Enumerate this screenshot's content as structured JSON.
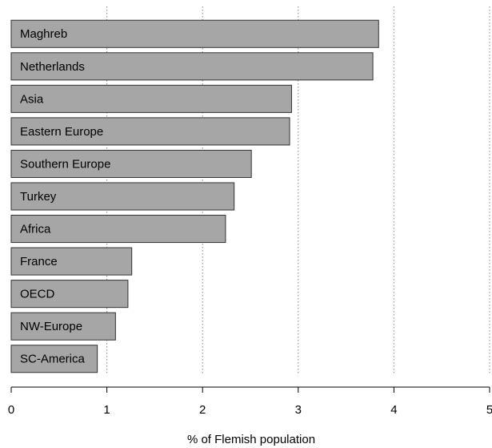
{
  "chart_data": {
    "type": "hbar",
    "xlabel": "% of Flemish population",
    "categories": [
      "Maghreb",
      "Netherlands",
      "Asia",
      "Eastern Europe",
      "Southern Europe",
      "Turkey",
      "Africa",
      "France",
      "OECD",
      "NW-Europe",
      "SC-America"
    ],
    "values": [
      3.84,
      3.78,
      2.93,
      2.91,
      2.51,
      2.33,
      2.24,
      1.26,
      1.22,
      1.09,
      0.9
    ],
    "color": "#a6a6a6",
    "xlim": [
      0,
      5
    ],
    "xticks": [
      0,
      1,
      2,
      3,
      4,
      5
    ],
    "grid": true
  }
}
